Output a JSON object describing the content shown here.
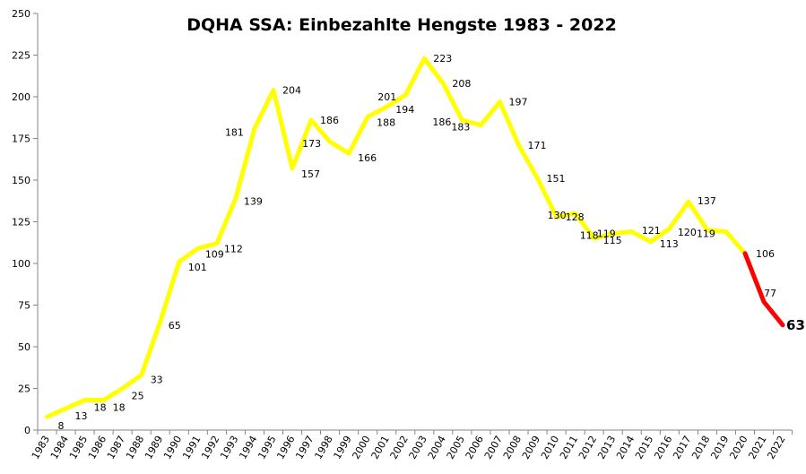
{
  "chart_data": {
    "type": "line",
    "title": "DQHA SSA: Einbezahlte Hengste 1983 - 2022",
    "xlabel": "",
    "ylabel": "",
    "ylim": [
      0,
      250
    ],
    "yticks": [
      0,
      25,
      50,
      75,
      100,
      125,
      150,
      175,
      200,
      225,
      250
    ],
    "grid": false,
    "legend": "none",
    "x": [
      "1983",
      "1984",
      "1985",
      "1986",
      "1987",
      "1988",
      "1989",
      "1990",
      "1991",
      "1992",
      "1993",
      "1994",
      "1995",
      "1996",
      "1997",
      "1998",
      "1999",
      "2000",
      "2001",
      "2002",
      "2003",
      "2004",
      "2005",
      "2006",
      "2007",
      "2008",
      "2009",
      "2010",
      "2011",
      "2012",
      "2013",
      "2014",
      "2015",
      "2016",
      "2017",
      "2018",
      "2019",
      "2020",
      "2021",
      "2022"
    ],
    "series": [
      {
        "values": [
          8,
          13,
          18,
          18,
          25,
          33,
          65,
          101,
          109,
          112,
          139,
          181,
          204,
          157,
          186,
          173,
          166,
          188,
          194,
          201,
          223,
          208,
          186,
          183,
          197,
          171,
          151,
          128,
          130,
          115,
          118,
          119,
          113,
          121,
          137,
          120,
          119,
          106,
          77,
          63
        ],
        "color": "#ffff00",
        "highlight_from_index": 37,
        "highlight_color": "#ff0000"
      }
    ]
  }
}
